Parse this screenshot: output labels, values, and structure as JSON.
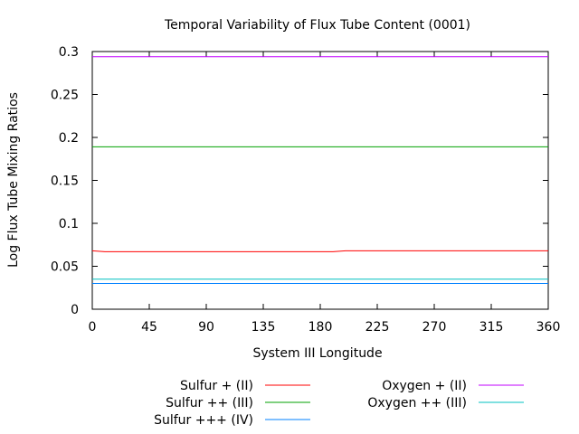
{
  "chart_data": {
    "type": "line",
    "title": "Temporal Variability of Flux Tube Content (0001)",
    "xlabel": "System III Longitude",
    "ylabel": "Log Flux Tube Mixing Ratios",
    "xlim": [
      0,
      360
    ],
    "ylim": [
      0,
      0.3
    ],
    "x_ticks": [
      0,
      45,
      90,
      135,
      180,
      225,
      270,
      315,
      360
    ],
    "y_ticks": [
      0,
      0.05,
      0.1,
      0.15,
      0.2,
      0.25,
      0.3
    ],
    "y_tick_labels": [
      "0",
      "0.05",
      "0.1",
      "0.15",
      "0.2",
      "0.25",
      "0.3"
    ],
    "grid": false,
    "legend_position": "bottom",
    "series": [
      {
        "name": "Sulfur + (II)",
        "color": "#ff0000",
        "x": [
          0,
          10,
          20,
          90,
          180,
          190,
          200,
          270,
          360
        ],
        "values": [
          0.068,
          0.067,
          0.067,
          0.067,
          0.067,
          0.067,
          0.068,
          0.068,
          0.068
        ]
      },
      {
        "name": "Sulfur ++ (III)",
        "color": "#00a000",
        "x": [
          0,
          360
        ],
        "values": [
          0.189,
          0.189
        ]
      },
      {
        "name": "Sulfur +++ (IV)",
        "color": "#0080ff",
        "x": [
          0,
          360
        ],
        "values": [
          0.03,
          0.03
        ]
      },
      {
        "name": "Oxygen + (II)",
        "color": "#c000ff",
        "x": [
          0,
          360
        ],
        "values": [
          0.294,
          0.294
        ]
      },
      {
        "name": "Oxygen ++ (III)",
        "color": "#00c0c0",
        "x": [
          0,
          360
        ],
        "values": [
          0.035,
          0.035
        ]
      }
    ]
  }
}
